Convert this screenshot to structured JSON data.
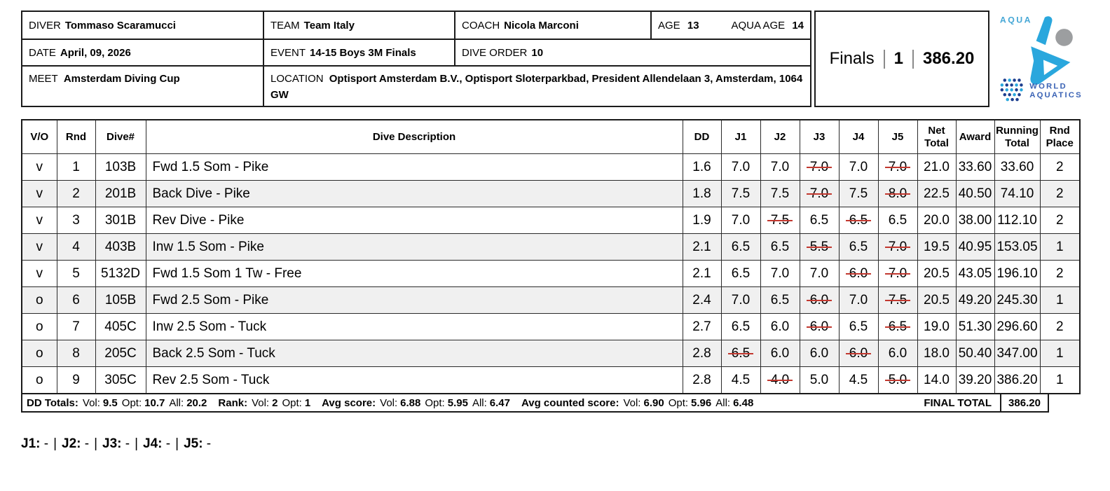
{
  "header": {
    "diver_label": "DIVER",
    "diver": "Tommaso Scaramucci",
    "team_label": "TEAM",
    "team": "Team Italy",
    "coach_label": "COACH",
    "coach": "Nicola Marconi",
    "age_label": "AGE",
    "age": "13",
    "aqua_age_label": "AQUA AGE",
    "aqua_age": "14",
    "date_label": "DATE",
    "date": "April, 09, 2026",
    "event_label": "EVENT",
    "event": "14-15 Boys 3M Finals",
    "dive_order_label": "DIVE ORDER",
    "dive_order": "10",
    "meet_label": "MEET",
    "meet": "Amsterdam Diving Cup",
    "location_label": "LOCATION",
    "location": "Optisport Amsterdam B.V., Optisport Sloterparkbad, President Allendelaan 3, Amsterdam, 1064 GW"
  },
  "summary": {
    "round": "Finals",
    "rank": "1",
    "total": "386.20"
  },
  "logo": {
    "aqua": "AQUA",
    "world": "WORLD",
    "aquatics": "AQUATICS"
  },
  "table": {
    "columns": [
      "V/O",
      "Rnd",
      "Dive#",
      "Dive Description",
      "DD",
      "J1",
      "J2",
      "J3",
      "J4",
      "J5",
      "Net Total",
      "Award",
      "Running Total",
      "Rnd Place"
    ],
    "rows": [
      {
        "vo": "v",
        "rnd": "1",
        "dive": "103B",
        "desc": "Fwd 1.5 Som - Pike",
        "dd": "1.6",
        "judges": [
          {
            "s": "7.0"
          },
          {
            "s": "7.0"
          },
          {
            "s": "7.0",
            "struck": true
          },
          {
            "s": "7.0"
          },
          {
            "s": "7.0",
            "struck": true
          }
        ],
        "net": "21.0",
        "award": "33.60",
        "running": "33.60",
        "place": "2"
      },
      {
        "vo": "v",
        "rnd": "2",
        "dive": "201B",
        "desc": "Back Dive - Pike",
        "dd": "1.8",
        "judges": [
          {
            "s": "7.5"
          },
          {
            "s": "7.5"
          },
          {
            "s": "7.0",
            "struck": true
          },
          {
            "s": "7.5"
          },
          {
            "s": "8.0",
            "struck": true
          }
        ],
        "net": "22.5",
        "award": "40.50",
        "running": "74.10",
        "place": "2"
      },
      {
        "vo": "v",
        "rnd": "3",
        "dive": "301B",
        "desc": "Rev Dive - Pike",
        "dd": "1.9",
        "judges": [
          {
            "s": "7.0"
          },
          {
            "s": "7.5",
            "struck": true
          },
          {
            "s": "6.5"
          },
          {
            "s": "6.5",
            "struck": true
          },
          {
            "s": "6.5"
          }
        ],
        "net": "20.0",
        "award": "38.00",
        "running": "112.10",
        "place": "2"
      },
      {
        "vo": "v",
        "rnd": "4",
        "dive": "403B",
        "desc": "Inw 1.5 Som - Pike",
        "dd": "2.1",
        "judges": [
          {
            "s": "6.5"
          },
          {
            "s": "6.5"
          },
          {
            "s": "5.5",
            "struck": true
          },
          {
            "s": "6.5"
          },
          {
            "s": "7.0",
            "struck": true
          }
        ],
        "net": "19.5",
        "award": "40.95",
        "running": "153.05",
        "place": "1"
      },
      {
        "vo": "v",
        "rnd": "5",
        "dive": "5132D",
        "desc": "Fwd 1.5 Som 1 Tw - Free",
        "dd": "2.1",
        "judges": [
          {
            "s": "6.5"
          },
          {
            "s": "7.0"
          },
          {
            "s": "7.0"
          },
          {
            "s": "6.0",
            "struck": true
          },
          {
            "s": "7.0",
            "struck": true
          }
        ],
        "net": "20.5",
        "award": "43.05",
        "running": "196.10",
        "place": "2"
      },
      {
        "vo": "o",
        "rnd": "6",
        "dive": "105B",
        "desc": "Fwd 2.5 Som - Pike",
        "dd": "2.4",
        "judges": [
          {
            "s": "7.0"
          },
          {
            "s": "6.5"
          },
          {
            "s": "6.0",
            "struck": true
          },
          {
            "s": "7.0"
          },
          {
            "s": "7.5",
            "struck": true
          }
        ],
        "net": "20.5",
        "award": "49.20",
        "running": "245.30",
        "place": "1"
      },
      {
        "vo": "o",
        "rnd": "7",
        "dive": "405C",
        "desc": "Inw 2.5 Som - Tuck",
        "dd": "2.7",
        "judges": [
          {
            "s": "6.5"
          },
          {
            "s": "6.0"
          },
          {
            "s": "6.0",
            "struck": true
          },
          {
            "s": "6.5"
          },
          {
            "s": "6.5",
            "struck": true
          }
        ],
        "net": "19.0",
        "award": "51.30",
        "running": "296.60",
        "place": "2"
      },
      {
        "vo": "o",
        "rnd": "8",
        "dive": "205C",
        "desc": "Back 2.5 Som - Tuck",
        "dd": "2.8",
        "judges": [
          {
            "s": "6.5",
            "struck": true
          },
          {
            "s": "6.0"
          },
          {
            "s": "6.0"
          },
          {
            "s": "6.0",
            "struck": true
          },
          {
            "s": "6.0"
          }
        ],
        "net": "18.0",
        "award": "50.40",
        "running": "347.00",
        "place": "1"
      },
      {
        "vo": "o",
        "rnd": "9",
        "dive": "305C",
        "desc": "Rev 2.5 Som - Tuck",
        "dd": "2.8",
        "judges": [
          {
            "s": "4.5"
          },
          {
            "s": "4.0",
            "struck": true
          },
          {
            "s": "5.0"
          },
          {
            "s": "4.5"
          },
          {
            "s": "5.0",
            "struck": true
          }
        ],
        "net": "14.0",
        "award": "39.20",
        "running": "386.20",
        "place": "1"
      }
    ]
  },
  "footer": {
    "groups": [
      {
        "label": "DD Totals:",
        "items": [
          [
            "Vol:",
            "9.5"
          ],
          [
            "Opt:",
            "10.7"
          ],
          [
            "All:",
            "20.2"
          ]
        ]
      },
      {
        "label": "Rank:",
        "items": [
          [
            "Vol:",
            "2"
          ],
          [
            "Opt:",
            "1"
          ]
        ]
      },
      {
        "label": "Avg score:",
        "items": [
          [
            "Vol:",
            "6.88"
          ],
          [
            "Opt:",
            "5.95"
          ],
          [
            "All:",
            "6.47"
          ]
        ]
      },
      {
        "label": "Avg counted score:",
        "items": [
          [
            "Vol:",
            "6.90"
          ],
          [
            "Opt:",
            "5.96"
          ],
          [
            "All:",
            "6.48"
          ]
        ]
      }
    ],
    "final_total_label": "FINAL TOTAL",
    "final_total": "386.20"
  },
  "judges_line": {
    "separator": "|",
    "items": [
      {
        "label": "J1:",
        "value": "-"
      },
      {
        "label": "J2:",
        "value": "-"
      },
      {
        "label": "J3:",
        "value": "-"
      },
      {
        "label": "J4:",
        "value": "-"
      },
      {
        "label": "J5:",
        "value": "-"
      }
    ]
  },
  "colors": {
    "strike": "#c2382f",
    "row_alt": "#f0f0f0",
    "border": "#1a1a1a",
    "logo_cyan": "#2aa7dd",
    "logo_navy": "#1c3e8f",
    "logo_blue_text": "#3b63b5",
    "logo_gray": "#9c9ea0"
  }
}
